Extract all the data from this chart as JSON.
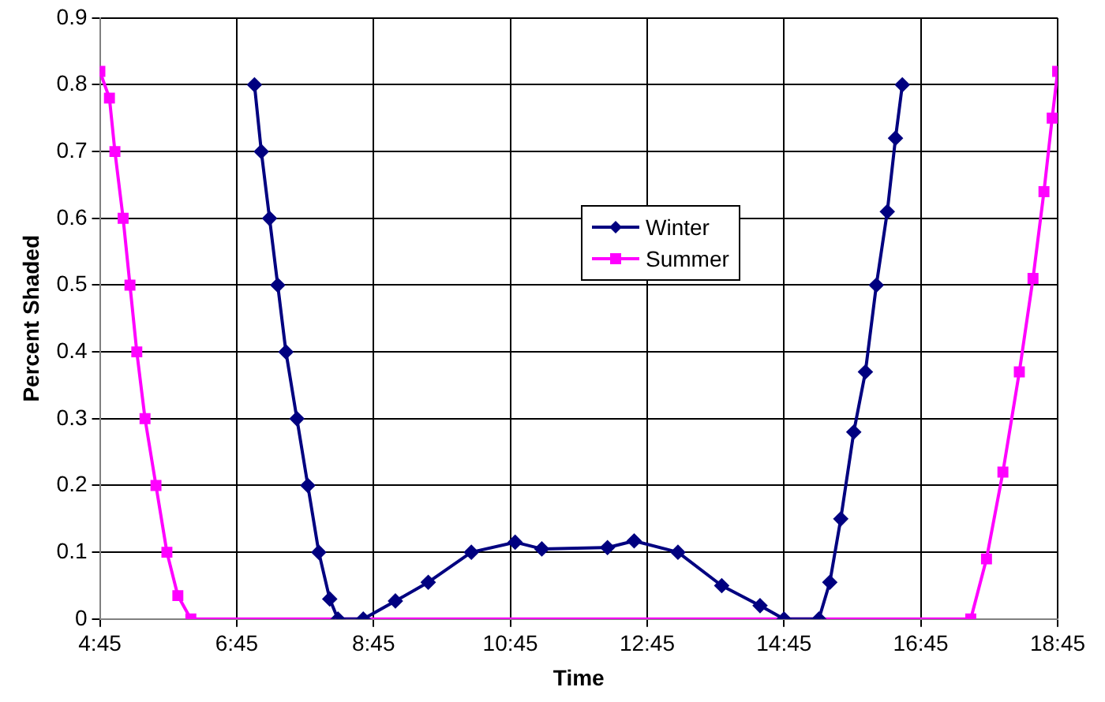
{
  "chart_data": {
    "type": "line",
    "xlabel": "Time",
    "ylabel": "Percent Shaded",
    "xlim": [
      4.75,
      18.75
    ],
    "xticks": [
      {
        "value": 4.75,
        "label": "4:45"
      },
      {
        "value": 6.75,
        "label": "6:45"
      },
      {
        "value": 8.75,
        "label": "8:45"
      },
      {
        "value": 10.75,
        "label": "10:45"
      },
      {
        "value": 12.75,
        "label": "12:45"
      },
      {
        "value": 14.75,
        "label": "14:45"
      },
      {
        "value": 16.75,
        "label": "16:45"
      },
      {
        "value": 18.75,
        "label": "18:45"
      }
    ],
    "ylim": [
      0,
      0.9
    ],
    "yticks": [
      0,
      0.1,
      0.2,
      0.3,
      0.4,
      0.5,
      0.6,
      0.7,
      0.8,
      0.9
    ],
    "grid": true,
    "legend": "center",
    "series": [
      {
        "name": "Winter",
        "color": "#000080",
        "marker": "diamond",
        "x": [
          7.01,
          7.11,
          7.23,
          7.35,
          7.47,
          7.63,
          7.79,
          7.95,
          8.11,
          8.23,
          8.6,
          9.07,
          9.55,
          10.18,
          10.82,
          11.21,
          12.17,
          12.56,
          13.2,
          13.84,
          14.4,
          14.75,
          15.26,
          15.42,
          15.58,
          15.77,
          15.94,
          16.1,
          16.26,
          16.38,
          16.48
        ],
        "values": [
          0.8,
          0.7,
          0.6,
          0.5,
          0.4,
          0.3,
          0.2,
          0.1,
          0.03,
          0,
          0,
          0.027,
          0.055,
          0.1,
          0.115,
          0.105,
          0.107,
          0.117,
          0.1,
          0.05,
          0.02,
          0,
          0,
          0.055,
          0.15,
          0.28,
          0.37,
          0.5,
          0.61,
          0.72,
          0.8
        ]
      },
      {
        "name": "Summer",
        "color": "#ff00ff",
        "marker": "square",
        "x": [
          4.75,
          4.89,
          4.97,
          5.09,
          5.19,
          5.29,
          5.41,
          5.57,
          5.73,
          5.89,
          6.08,
          17.48,
          17.71,
          17.95,
          18.19,
          18.39,
          18.55,
          18.67,
          18.75
        ],
        "values": [
          0.82,
          0.78,
          0.7,
          0.6,
          0.5,
          0.4,
          0.3,
          0.2,
          0.1,
          0.035,
          0,
          0,
          0.09,
          0.22,
          0.37,
          0.51,
          0.64,
          0.75,
          0.82
        ]
      }
    ]
  }
}
